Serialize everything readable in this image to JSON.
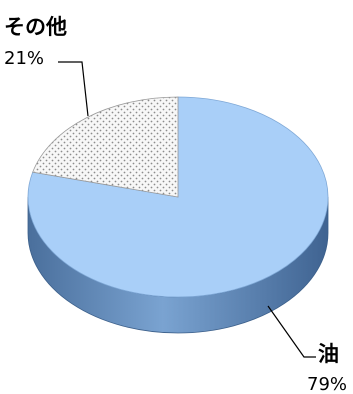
{
  "chart_data": {
    "type": "pie",
    "style": "3d",
    "slices": [
      {
        "label": "油",
        "value": 79,
        "value_label": "79%",
        "color": "#a9cff8",
        "side_color": "#5d86b4",
        "pattern": "none"
      },
      {
        "label": "その他",
        "value": 21,
        "value_label": "21%",
        "color": "#f4f4f4",
        "side_color": "#cfcfcf",
        "pattern": "dots"
      }
    ],
    "legend": "none"
  }
}
